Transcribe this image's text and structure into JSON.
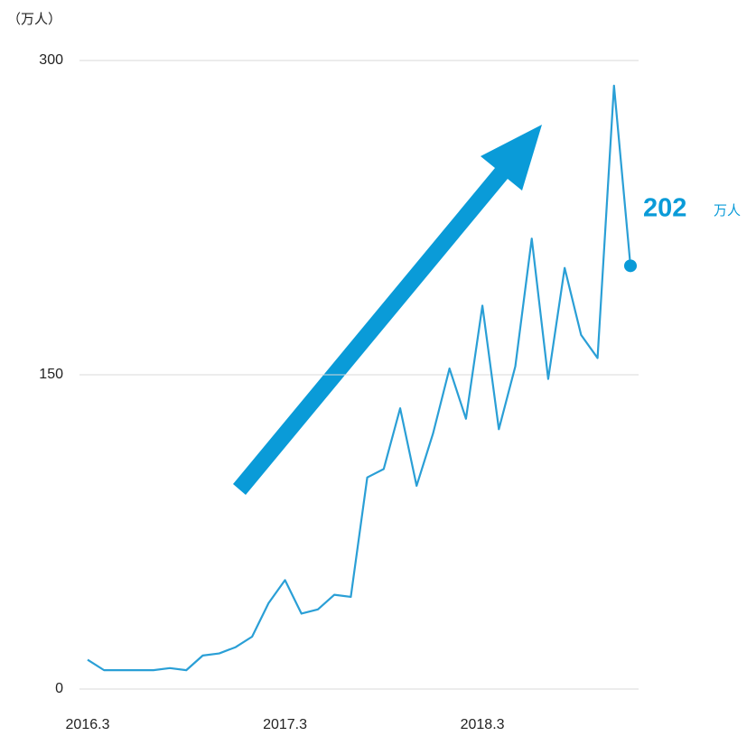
{
  "chart_data": {
    "type": "line",
    "y_label": "（万人）",
    "categories": [
      "2016.3",
      null,
      null,
      null,
      null,
      null,
      null,
      null,
      null,
      null,
      null,
      null,
      "2017.3",
      null,
      null,
      null,
      null,
      null,
      null,
      null,
      null,
      null,
      null,
      null,
      "2018.3",
      null,
      null,
      null,
      null,
      null,
      null,
      null,
      null,
      null
    ],
    "series": [
      {
        "name": "",
        "color": "#2a9fd6",
        "values": [
          14,
          9,
          9,
          9,
          9,
          10,
          9,
          16,
          17,
          20,
          25,
          41,
          52,
          36,
          38,
          45,
          44,
          101,
          105,
          134,
          97,
          122,
          153,
          129,
          183,
          124,
          154,
          215,
          148,
          201,
          169,
          158,
          288,
          202
        ]
      }
    ],
    "end_label_unit": "万人",
    "ylim": [
      0,
      300
    ],
    "yticks": [
      0,
      150,
      300
    ],
    "grid": true
  }
}
